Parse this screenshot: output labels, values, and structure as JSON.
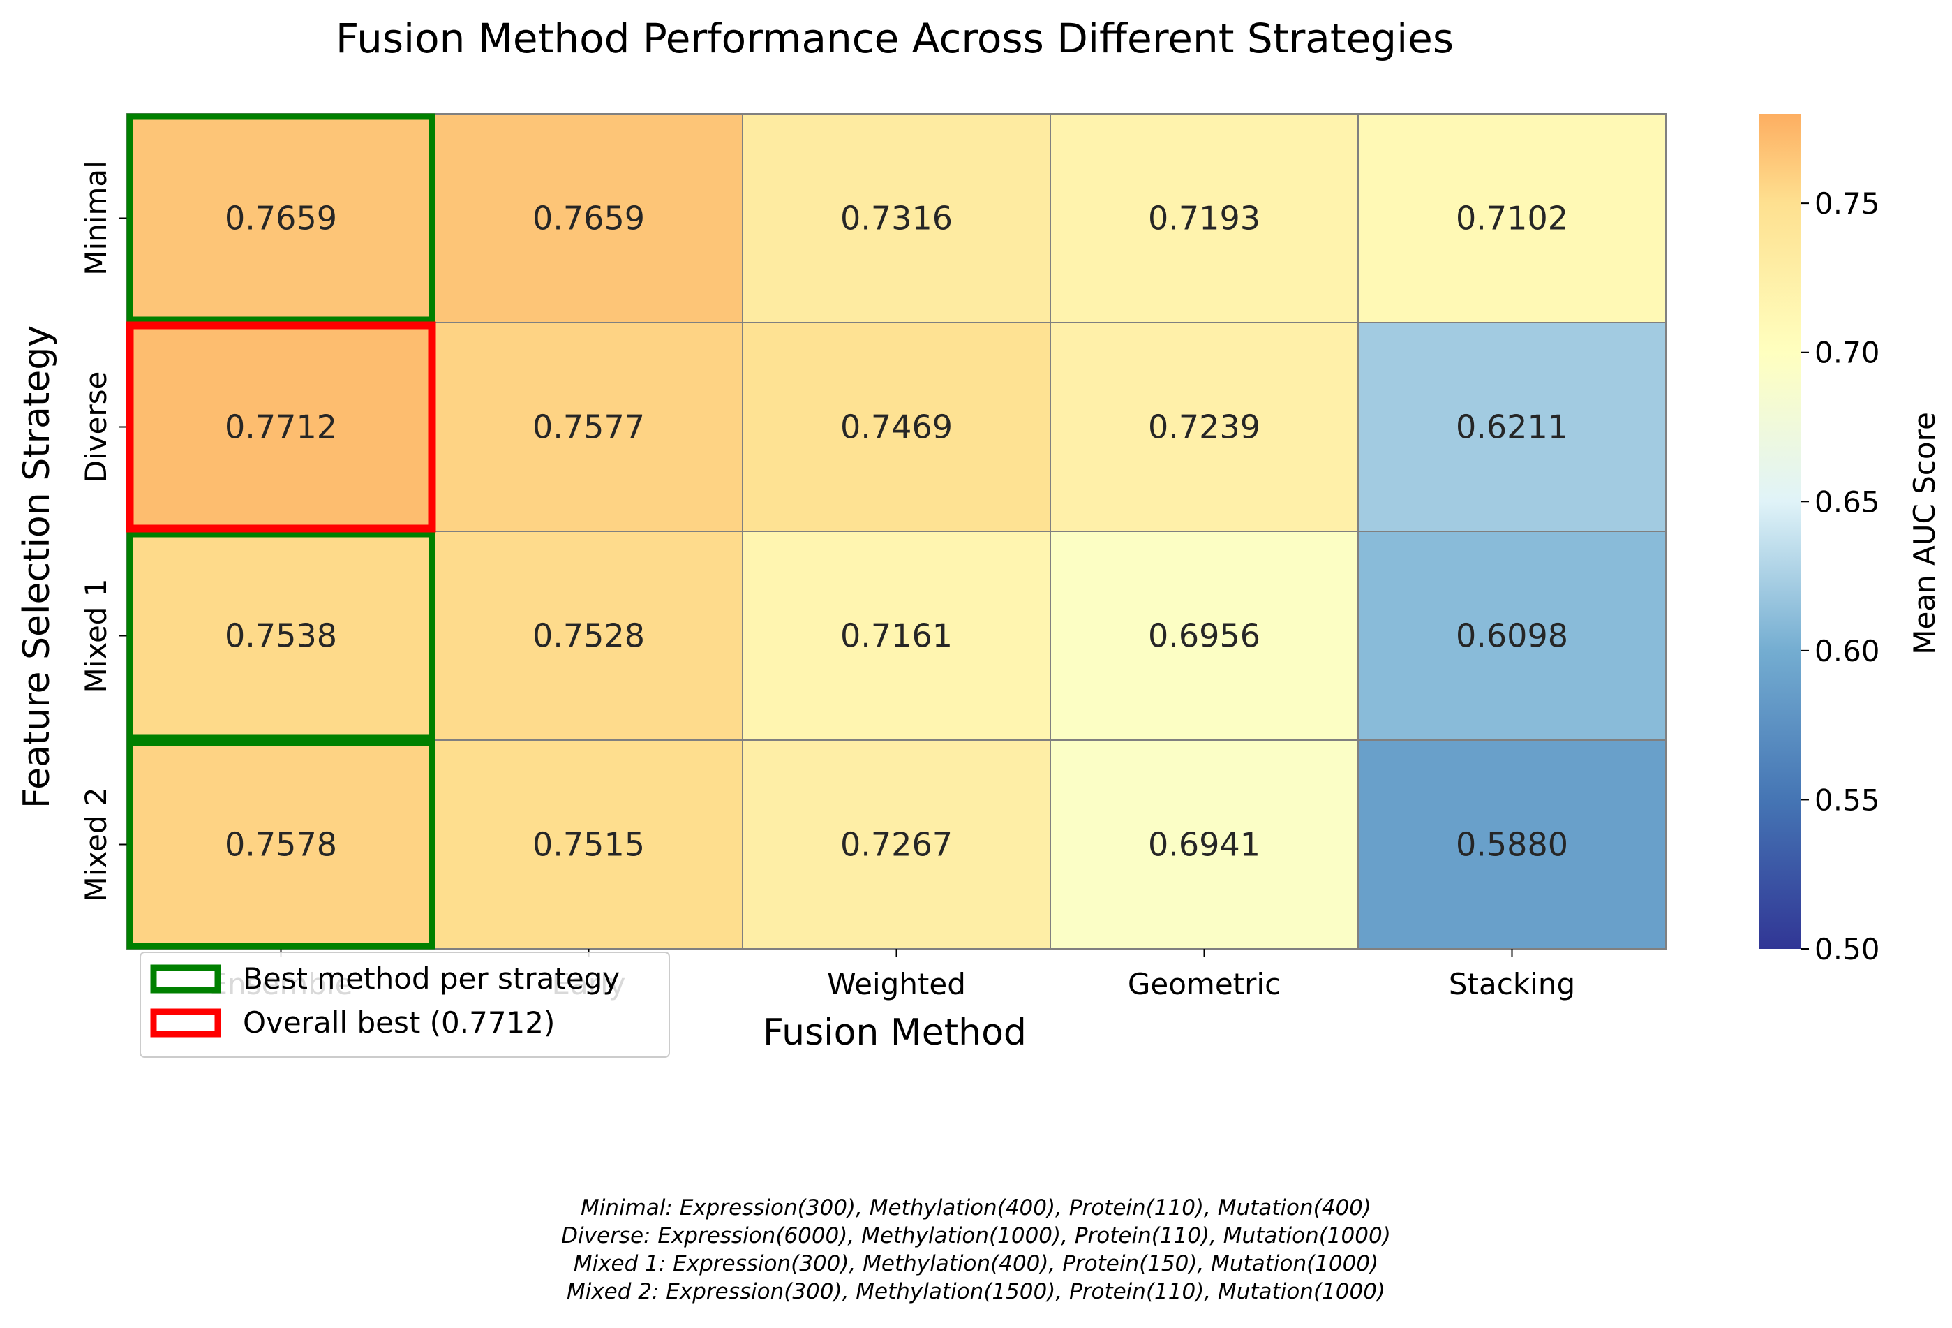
{
  "chart_data": {
    "type": "heatmap",
    "title": "Fusion Method Performance Across Different Strategies",
    "xlabel": "Fusion Method",
    "ylabel": "Feature Selection Strategy",
    "x_categories": [
      "Ensemble",
      "Early",
      "Weighted",
      "Geometric",
      "Stacking"
    ],
    "y_categories": [
      "Minimal",
      "Diverse",
      "Mixed 1",
      "Mixed 2"
    ],
    "values": [
      [
        0.7659,
        0.7659,
        0.7316,
        0.7193,
        0.7102
      ],
      [
        0.7712,
        0.7577,
        0.7469,
        0.7239,
        0.6211
      ],
      [
        0.7538,
        0.7528,
        0.7161,
        0.6956,
        0.6098
      ],
      [
        0.7578,
        0.7515,
        0.7267,
        0.6941,
        0.588
      ]
    ],
    "colorbar": {
      "label": "Mean AUC Score",
      "range": [
        0.5,
        0.78
      ],
      "ticks": [
        "0.50",
        "0.55",
        "0.60",
        "0.65",
        "0.70",
        "0.75"
      ],
      "colormap": "RdYlBu_r"
    },
    "highlights": {
      "best_per_strategy": [
        [
          0,
          0
        ],
        [
          1,
          0
        ],
        [
          2,
          0
        ],
        [
          3,
          0
        ]
      ],
      "overall_best": [
        1,
        0
      ],
      "best_color": "#008000",
      "overall_color": "#ff0000"
    },
    "legend": {
      "placement": "lower-left",
      "items": [
        {
          "label": "Best method per strategy",
          "color": "#008000"
        },
        {
          "label": "Overall best (0.7712)",
          "color": "#ff0000"
        }
      ]
    }
  },
  "footnotes": [
    "Minimal: Expression(300), Methylation(400), Protein(110), Mutation(400)",
    "Diverse: Expression(6000), Methylation(1000), Protein(110), Mutation(1000)",
    "Mixed 1: Expression(300), Methylation(400), Protein(150), Mutation(1000)",
    "Mixed 2: Expression(300), Methylation(1500), Protein(110), Mutation(1000)"
  ]
}
